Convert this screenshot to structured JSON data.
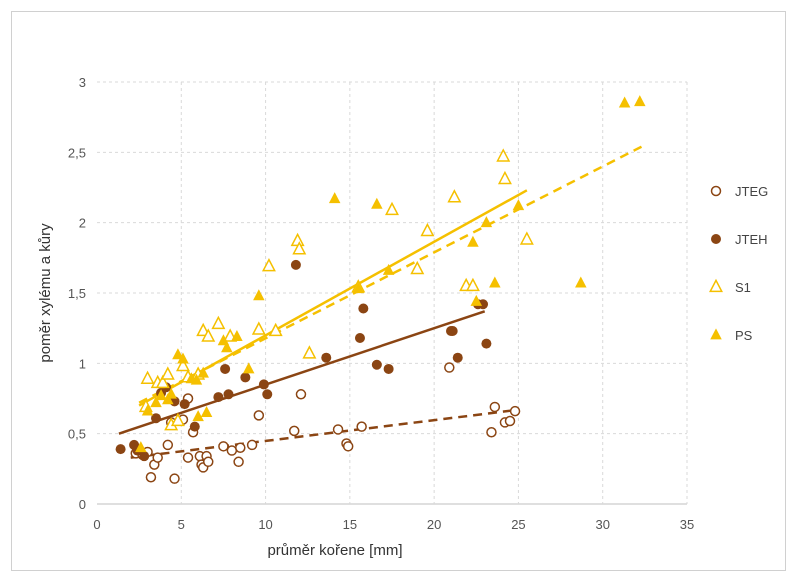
{
  "chart_data": {
    "type": "scatter",
    "xlabel": "průměr kořene [mm]",
    "ylabel": "poměr xylému a kůry",
    "xlim": [
      0,
      35
    ],
    "ylim": [
      0,
      3
    ],
    "x_ticks": [
      "0",
      "5",
      "10",
      "15",
      "20",
      "25",
      "30",
      "35"
    ],
    "y_ticks": [
      "0",
      "0,5",
      "1",
      "1,5",
      "2",
      "2,5",
      "3"
    ],
    "x_tick_values": [
      0,
      5,
      10,
      15,
      20,
      25,
      30,
      35
    ],
    "y_tick_values": [
      0,
      0.5,
      1,
      1.5,
      2,
      2.5,
      3
    ],
    "grid": "horizontal-and-vertical dashed",
    "legend_position": "right",
    "series": [
      {
        "name": "JTEG",
        "marker": "open-circle",
        "color": "#8B4513",
        "trendline": {
          "style": "dashed",
          "x": [
            2.0,
            25.0
          ],
          "y": [
            0.33,
            0.67
          ]
        },
        "points": [
          [
            2.3,
            0.36
          ],
          [
            2.7,
            0.35
          ],
          [
            3.0,
            0.37
          ],
          [
            3.2,
            0.19
          ],
          [
            3.4,
            0.28
          ],
          [
            3.6,
            0.33
          ],
          [
            4.2,
            0.42
          ],
          [
            4.4,
            0.58
          ],
          [
            4.6,
            0.18
          ],
          [
            5.1,
            0.6
          ],
          [
            5.4,
            0.75
          ],
          [
            5.4,
            0.33
          ],
          [
            5.7,
            0.51
          ],
          [
            6.1,
            0.34
          ],
          [
            6.2,
            0.28
          ],
          [
            6.3,
            0.26
          ],
          [
            6.5,
            0.34
          ],
          [
            6.6,
            0.3
          ],
          [
            7.5,
            0.41
          ],
          [
            8.0,
            0.38
          ],
          [
            8.4,
            0.3
          ],
          [
            8.5,
            0.4
          ],
          [
            9.2,
            0.42
          ],
          [
            9.6,
            0.63
          ],
          [
            11.7,
            0.52
          ],
          [
            12.1,
            0.78
          ],
          [
            14.3,
            0.53
          ],
          [
            14.8,
            0.43
          ],
          [
            14.9,
            0.41
          ],
          [
            15.7,
            0.55
          ],
          [
            20.9,
            0.97
          ],
          [
            23.4,
            0.51
          ],
          [
            23.6,
            0.69
          ],
          [
            24.2,
            0.58
          ],
          [
            24.5,
            0.59
          ],
          [
            24.8,
            0.66
          ]
        ]
      },
      {
        "name": "JTEH",
        "marker": "filled-circle",
        "color": "#8B4513",
        "trendline": {
          "style": "solid",
          "x": [
            1.3,
            23.0
          ],
          "y": [
            0.5,
            1.37
          ]
        },
        "points": [
          [
            1.4,
            0.39
          ],
          [
            2.2,
            0.42
          ],
          [
            2.4,
            0.38
          ],
          [
            2.8,
            0.34
          ],
          [
            3.5,
            0.61
          ],
          [
            3.8,
            0.79
          ],
          [
            4.1,
            0.83
          ],
          [
            4.6,
            0.73
          ],
          [
            5.2,
            0.71
          ],
          [
            5.8,
            0.55
          ],
          [
            7.2,
            0.76
          ],
          [
            7.6,
            0.96
          ],
          [
            7.8,
            0.78
          ],
          [
            8.8,
            0.9
          ],
          [
            9.9,
            0.85
          ],
          [
            10.1,
            0.78
          ],
          [
            11.8,
            1.7
          ],
          [
            13.6,
            1.04
          ],
          [
            15.6,
            1.18
          ],
          [
            15.8,
            1.39
          ],
          [
            16.6,
            0.99
          ],
          [
            17.3,
            0.96
          ],
          [
            21.0,
            1.23
          ],
          [
            21.1,
            1.23
          ],
          [
            21.4,
            1.04
          ],
          [
            22.6,
            1.42
          ],
          [
            22.9,
            1.42
          ],
          [
            23.1,
            1.14
          ]
        ]
      },
      {
        "name": "S1",
        "marker": "open-triangle",
        "color": "#F5C000",
        "trendline": {
          "style": "dashed",
          "x": [
            2.5,
            32.3
          ],
          "y": [
            0.72,
            2.54
          ]
        },
        "points": [
          [
            2.9,
            0.69
          ],
          [
            3.0,
            0.89
          ],
          [
            3.6,
            0.86
          ],
          [
            3.9,
            0.86
          ],
          [
            4.2,
            0.92
          ],
          [
            4.4,
            0.56
          ],
          [
            4.8,
            0.59
          ],
          [
            5.1,
            0.98
          ],
          [
            5.4,
            0.9
          ],
          [
            6.0,
            0.92
          ],
          [
            6.3,
            1.23
          ],
          [
            6.6,
            1.19
          ],
          [
            7.2,
            1.28
          ],
          [
            7.9,
            1.19
          ],
          [
            9.6,
            1.24
          ],
          [
            10.2,
            1.69
          ],
          [
            10.6,
            1.23
          ],
          [
            11.9,
            1.87
          ],
          [
            12.0,
            1.81
          ],
          [
            12.6,
            1.07
          ],
          [
            15.5,
            1.54
          ],
          [
            17.5,
            2.09
          ],
          [
            19.0,
            1.67
          ],
          [
            19.6,
            1.94
          ],
          [
            21.2,
            2.18
          ],
          [
            21.9,
            1.55
          ],
          [
            22.3,
            1.55
          ],
          [
            24.1,
            2.47
          ],
          [
            24.2,
            2.31
          ],
          [
            25.5,
            1.88
          ]
        ]
      },
      {
        "name": "PS",
        "marker": "filled-triangle",
        "color": "#F5C000",
        "trendline": {
          "style": "solid",
          "x": [
            2.5,
            25.5
          ],
          "y": [
            0.7,
            2.23
          ]
        },
        "points": [
          [
            2.6,
            0.4
          ],
          [
            3.0,
            0.66
          ],
          [
            3.5,
            0.72
          ],
          [
            3.8,
            0.77
          ],
          [
            4.2,
            0.74
          ],
          [
            4.4,
            0.78
          ],
          [
            4.8,
            1.06
          ],
          [
            5.1,
            1.03
          ],
          [
            5.6,
            0.89
          ],
          [
            5.9,
            0.88
          ],
          [
            6.0,
            0.62
          ],
          [
            6.3,
            0.93
          ],
          [
            6.5,
            0.65
          ],
          [
            7.5,
            1.16
          ],
          [
            7.7,
            1.11
          ],
          [
            8.3,
            1.19
          ],
          [
            9.0,
            0.96
          ],
          [
            9.6,
            1.48
          ],
          [
            14.1,
            2.17
          ],
          [
            15.5,
            1.53
          ],
          [
            16.6,
            2.13
          ],
          [
            17.3,
            1.66
          ],
          [
            22.3,
            1.86
          ],
          [
            22.5,
            1.44
          ],
          [
            23.1,
            2.0
          ],
          [
            23.6,
            1.57
          ],
          [
            25.0,
            2.12
          ],
          [
            28.7,
            1.57
          ],
          [
            31.3,
            2.85
          ],
          [
            32.2,
            2.86
          ]
        ]
      }
    ]
  }
}
